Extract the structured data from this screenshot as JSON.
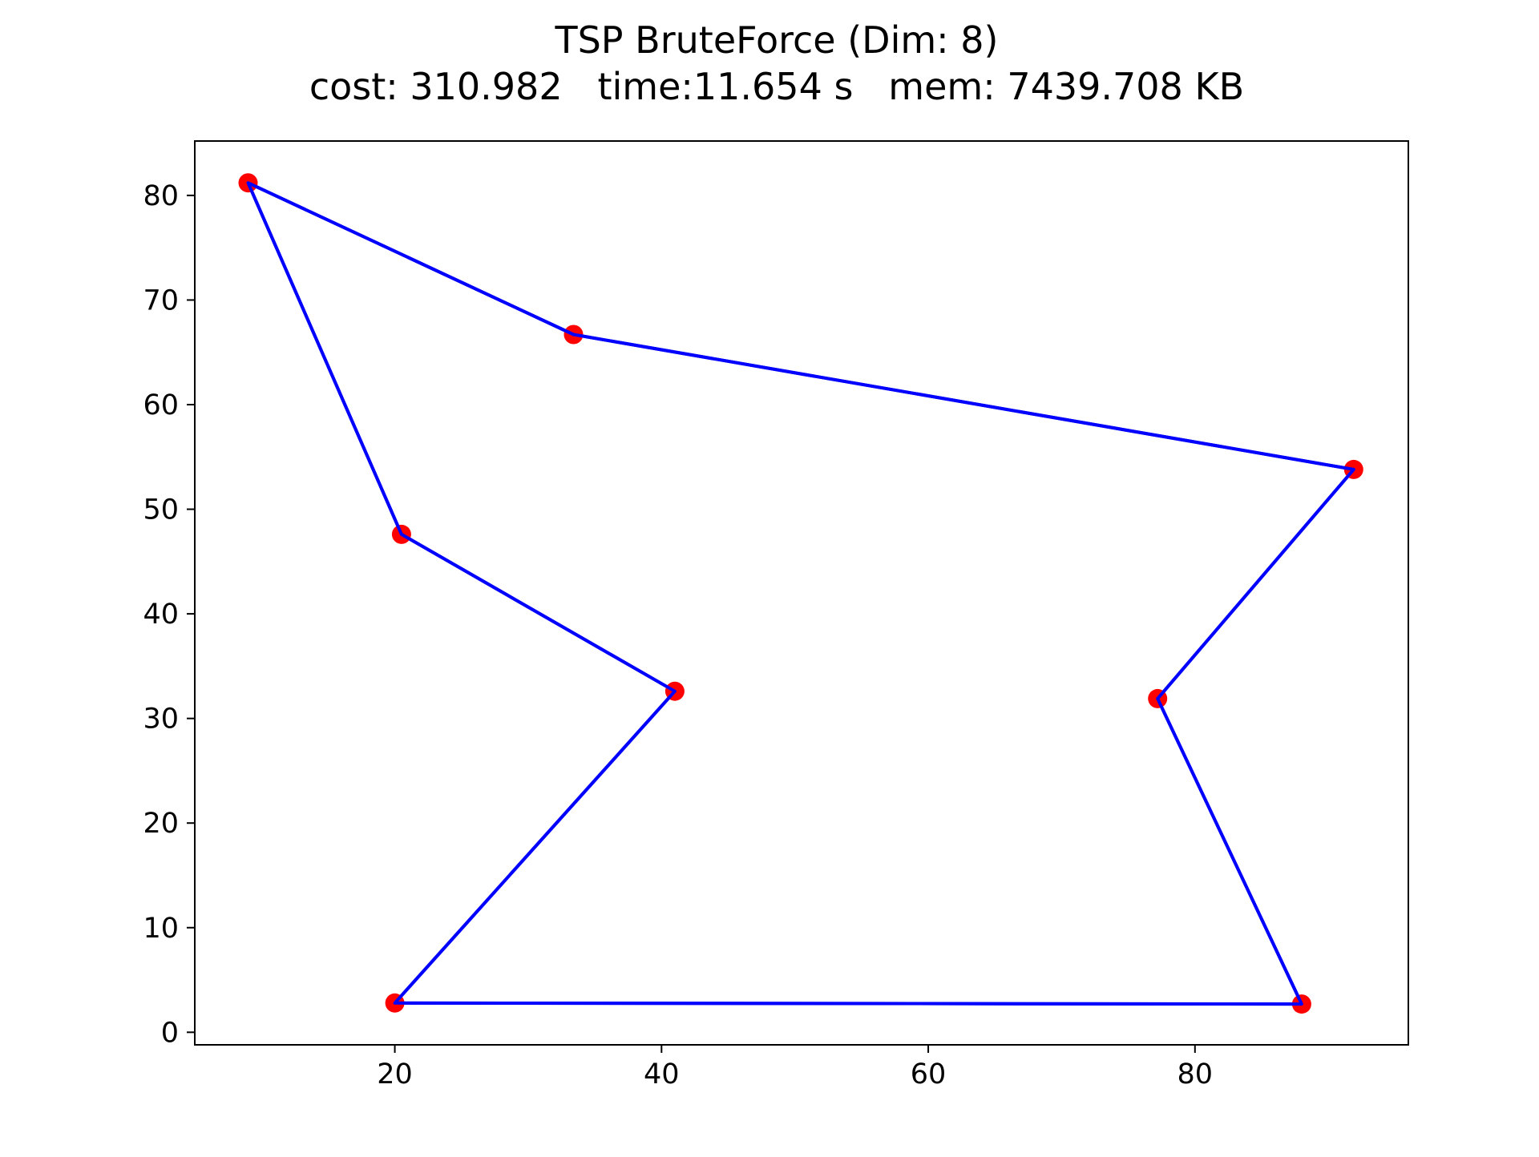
{
  "chart_data": {
    "type": "line",
    "title": "TSP BruteForce (Dim: 8)",
    "subtitle": "cost: 310.982   time:11.654 s   mem: 7439.708 KB",
    "xlabel": "",
    "ylabel": "",
    "xlim": [
      5,
      96
    ],
    "ylim": [
      -1.2,
      85.2
    ],
    "xticks": [
      20,
      40,
      60,
      80
    ],
    "yticks": [
      0,
      10,
      20,
      30,
      40,
      50,
      60,
      70,
      80
    ],
    "grid": false,
    "series": [
      {
        "style": "markers",
        "color": "#ff0000",
        "x": [
          9.0,
          33.4,
          91.9,
          77.2,
          88.0,
          20.0,
          41.0,
          20.5
        ],
        "y": [
          81.2,
          66.7,
          53.8,
          31.9,
          2.7,
          2.8,
          32.6,
          47.6
        ]
      },
      {
        "style": "line",
        "color": "#0000ff",
        "closed": true,
        "x": [
          9.0,
          33.4,
          91.9,
          77.2,
          88.0,
          20.0,
          41.0,
          20.5
        ],
        "y": [
          81.2,
          66.7,
          53.8,
          31.9,
          2.7,
          2.8,
          32.6,
          47.6
        ]
      }
    ]
  }
}
